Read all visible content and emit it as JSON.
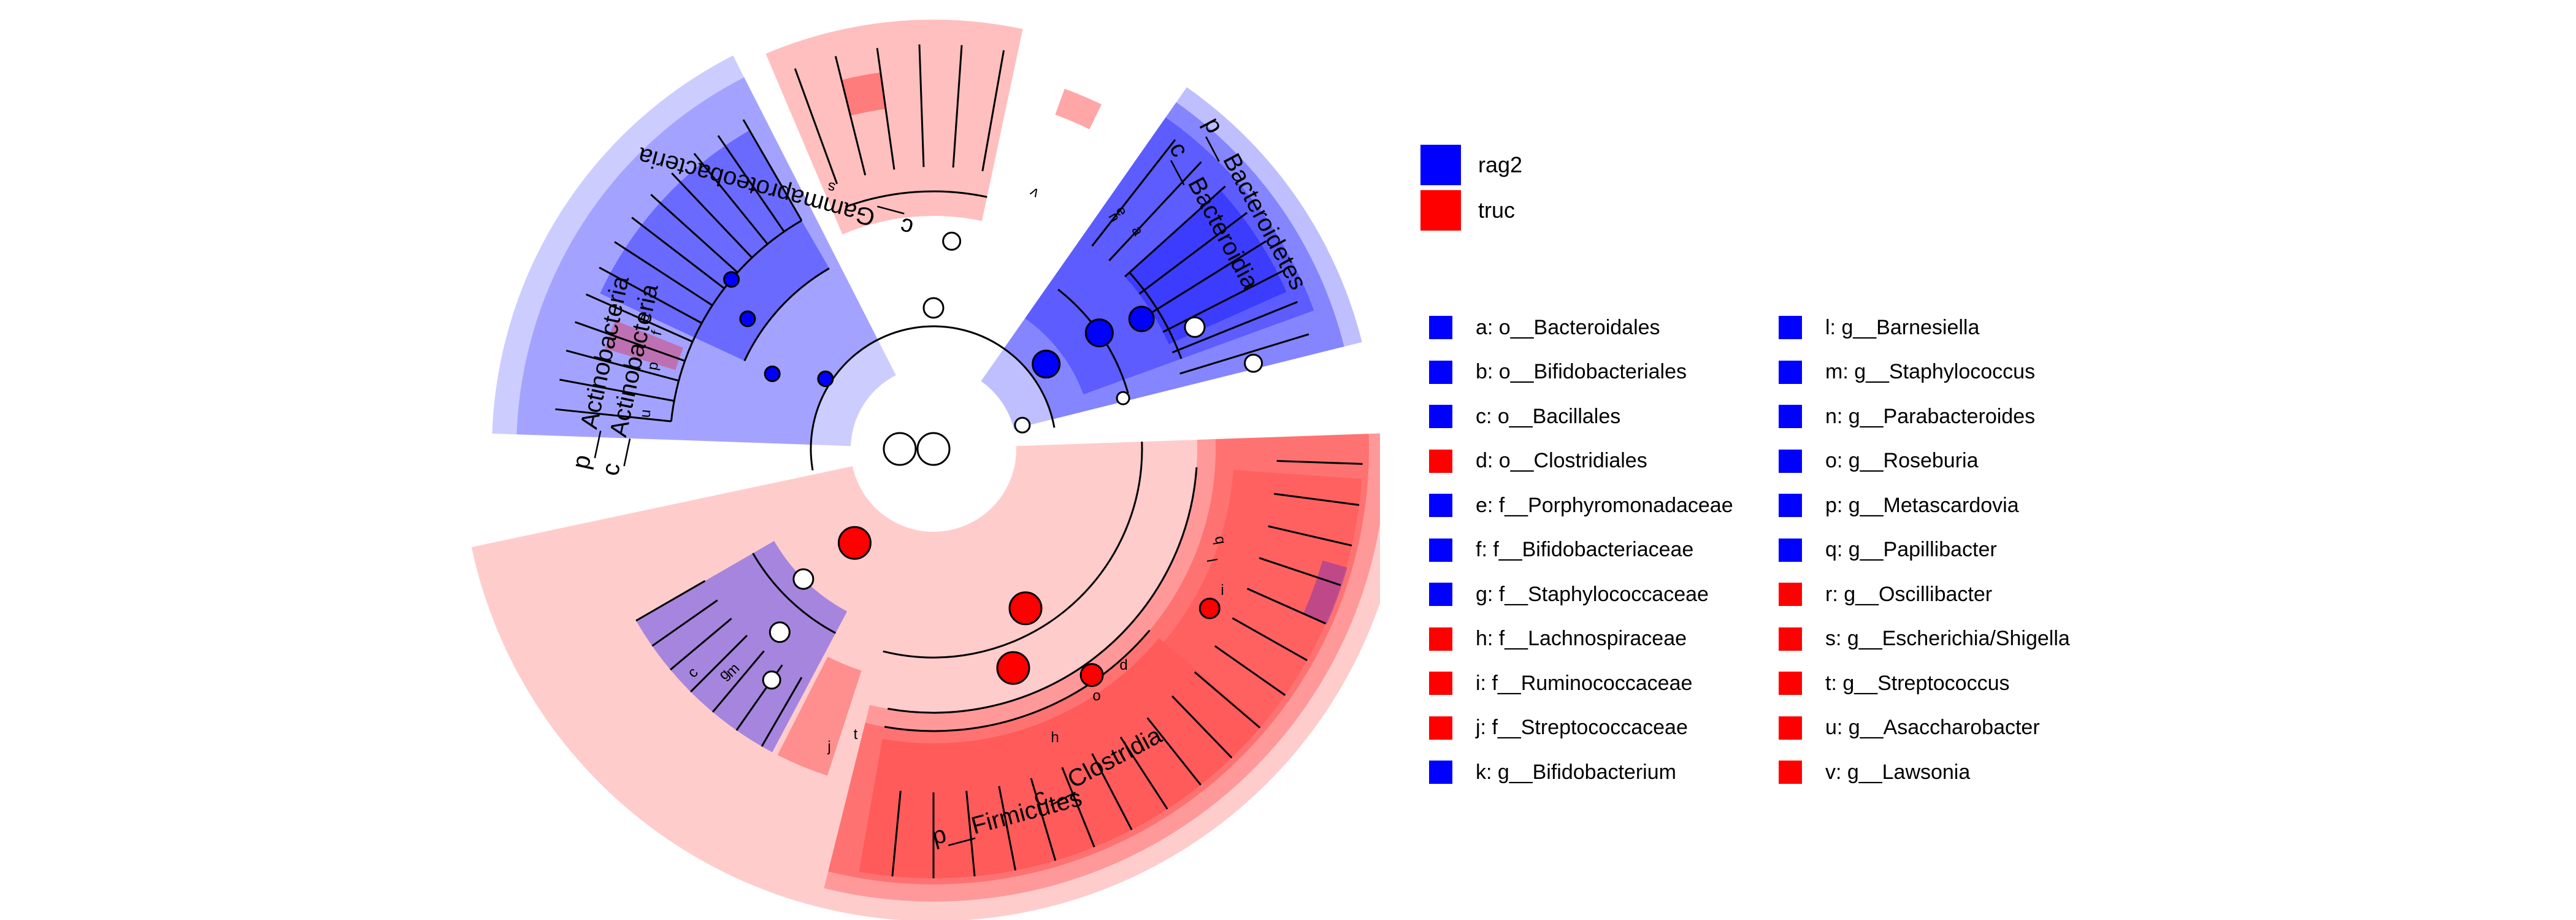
{
  "colors": {
    "rag2": "#0000ff",
    "truc": "#ff0000"
  },
  "groups": [
    {
      "name": "rag2",
      "color": "#0000ff"
    },
    {
      "name": "truc",
      "color": "#ff0000"
    }
  ],
  "clade_labels": {
    "bacteroidetes": "p__Bacteroidetes",
    "bacteroidia": "c__Bacteroidia",
    "actinobacteria_p": "p__Actinobacteria",
    "actinobacteria_c": "c__Actinobacteria",
    "gammaproteobacteria": "c__Gammaproteobacteria",
    "firmicutes": "p__Firmicutes",
    "clostridia": "c__Clostridia"
  },
  "node_letters": {
    "a": "a",
    "b": "b",
    "c": "c",
    "d": "d",
    "e": "e",
    "f": "f",
    "g": "g",
    "h": "h",
    "i": "i",
    "j": "j",
    "l": "l",
    "m": "m",
    "n": "n",
    "o": "o",
    "p": "p",
    "q": "q",
    "s": "s",
    "t": "t",
    "u": "u",
    "v": "v"
  },
  "keys": [
    {
      "text": "a: o__Bacteroidales",
      "group": "rag2"
    },
    {
      "text": "b: o__Bifidobacteriales",
      "group": "rag2"
    },
    {
      "text": "c: o__Bacillales",
      "group": "rag2"
    },
    {
      "text": "d: o__Clostridiales",
      "group": "truc"
    },
    {
      "text": "e: f__Porphyromonadaceae",
      "group": "rag2"
    },
    {
      "text": "f: f__Bifidobacteriaceae",
      "group": "rag2"
    },
    {
      "text": "g: f__Staphylococcaceae",
      "group": "rag2"
    },
    {
      "text": "h: f__Lachnospiraceae",
      "group": "truc"
    },
    {
      "text": "i: f__Ruminococcaceae",
      "group": "truc"
    },
    {
      "text": "j: f__Streptococcaceae",
      "group": "truc"
    },
    {
      "text": "k: g__Bifidobacterium",
      "group": "rag2"
    },
    {
      "text": "l: g__Barnesiella",
      "group": "rag2"
    },
    {
      "text": "m: g__Staphylococcus",
      "group": "rag2"
    },
    {
      "text": "n: g__Parabacteroides",
      "group": "rag2"
    },
    {
      "text": "o: g__Roseburia",
      "group": "rag2"
    },
    {
      "text": "p: g__Metascardovia",
      "group": "rag2"
    },
    {
      "text": "q: g__Papillibacter",
      "group": "rag2"
    },
    {
      "text": "r: g__Oscillibacter",
      "group": "truc"
    },
    {
      "text": "s: g__Escherichia/Shigella",
      "group": "truc"
    },
    {
      "text": "t: g__Streptococcus",
      "group": "truc"
    },
    {
      "text": "u: g__Asaccharobacter",
      "group": "truc"
    },
    {
      "text": "v: g__Lawsonia",
      "group": "truc"
    }
  ]
}
